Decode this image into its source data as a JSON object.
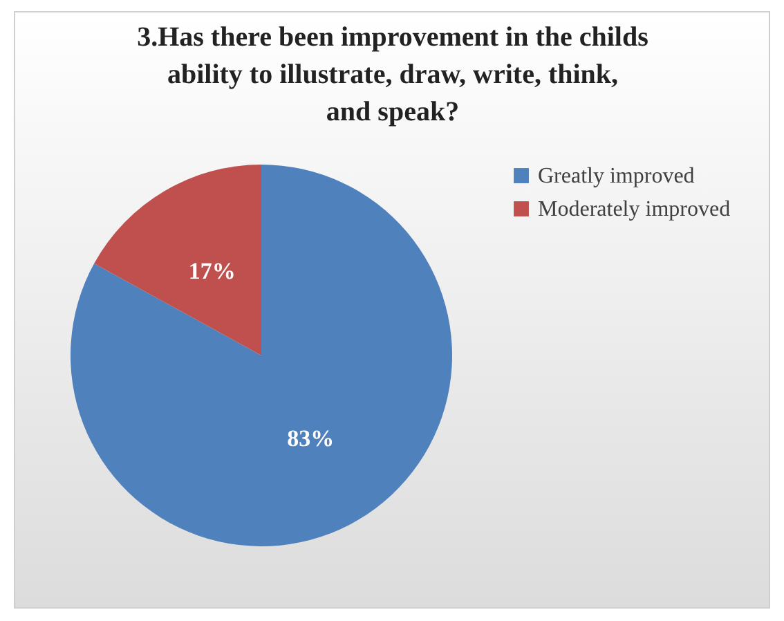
{
  "chart_data": {
    "type": "pie",
    "title": "3.Has there been improvement in the childs ability to illustrate, draw, write, think, and speak?",
    "categories": [
      "Greatly improved",
      "Moderately improved"
    ],
    "values": [
      83,
      17
    ],
    "colors": [
      "#4f81bd",
      "#c0504d"
    ],
    "value_labels": [
      "83%",
      "17%"
    ],
    "legend": "right"
  }
}
